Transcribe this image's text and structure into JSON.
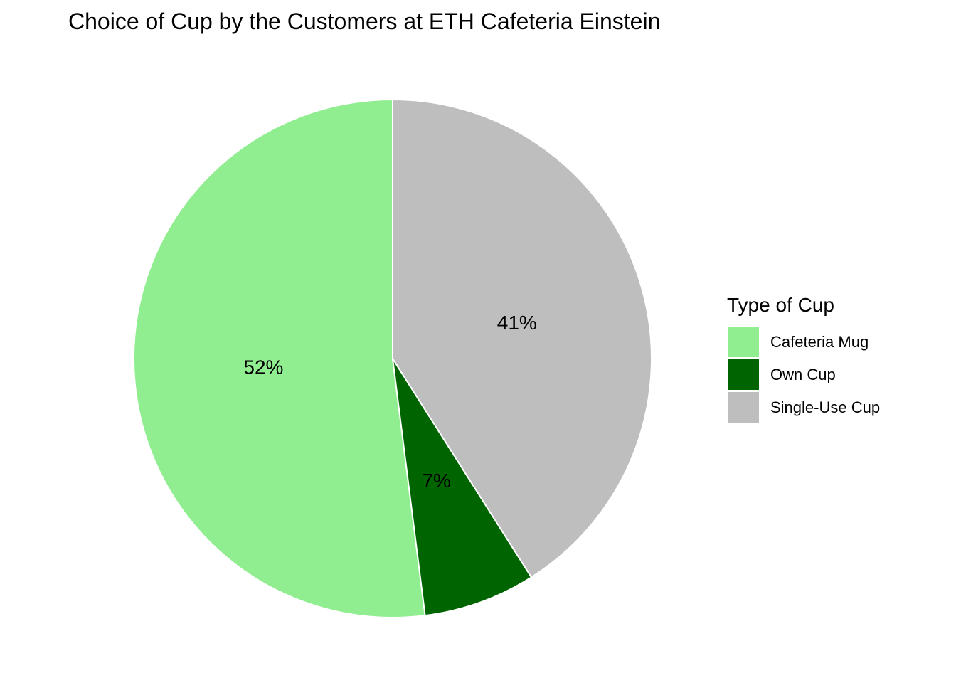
{
  "chart_data": {
    "type": "pie",
    "title": "Choice of Cup by the Customers at ETH Cafeteria Einstein",
    "legend": {
      "title": "Type of Cup",
      "placement": "right"
    },
    "slices": [
      {
        "category": "Cafeteria Mug",
        "value": 52,
        "label": "52%",
        "color": "#90EE90"
      },
      {
        "category": "Own Cup",
        "value": 7,
        "label": "7%",
        "color": "#006400"
      },
      {
        "category": "Single-Use Cup",
        "value": 41,
        "label": "41%",
        "color": "#BEBEBE"
      }
    ],
    "direction": "counterclockwise",
    "start": "top"
  }
}
